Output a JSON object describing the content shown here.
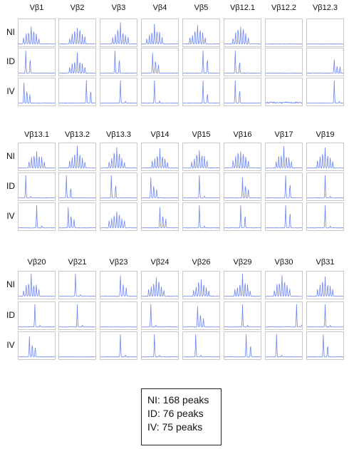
{
  "colors": {
    "trace": "#6f86f2",
    "frame": "#c9c9c9"
  },
  "row_labels": [
    "NI",
    "ID",
    "IV"
  ],
  "blocks": [
    {
      "labels": [
        "Vβ1",
        "Vβ2",
        "Vβ3",
        "Vβ4",
        "Vβ5",
        "Vβ12.1",
        "Vβ12.2",
        "Vβ12.3"
      ],
      "traces": [
        [
          "multi:0.35",
          "multi:0.5",
          "multi:0.55",
          "multi:0.35",
          "multi:0.4",
          "multi:0.45",
          "flat",
          "flat"
        ],
        [
          "pair:0.2",
          "multi:0.5",
          "pair:0.4",
          "cluster:0.3",
          "pair:0.55",
          "pair:0.3",
          "flat",
          "tail:0.75"
        ],
        [
          "cluster:0.15",
          "pair:0.75",
          "single:0.55",
          "single:0.35",
          "pair:0.55",
          "pair:0.3",
          "noise",
          "single:0.75"
        ]
      ]
    },
    {
      "labels": [
        "Vβ13.1",
        "Vβ13.2",
        "Vβ13.3",
        "Vβ14",
        "Vβ15",
        "Vβ16",
        "Vβ17",
        "Vβ19"
      ],
      "traces": [
        [
          "multi:0.5",
          "multi:0.5",
          "multi:0.45",
          "multi:0.5",
          "multi:0.45",
          "multi:0.45",
          "multi:0.5",
          "multi:0.5"
        ],
        [
          "single:0.2",
          "pair:0.2",
          "pair:0.3",
          "cluster:0.25",
          "single:0.45",
          "cluster:0.5",
          "pair:0.55",
          "single:0.5"
        ],
        [
          "single:0.5",
          "cluster:0.25",
          "multi:0.45",
          "cluster:0.5",
          "single:0.45",
          "pair:0.45",
          "pair:0.55",
          "single:0.5"
        ]
      ]
    },
    {
      "labels": [
        "Vβ20",
        "Vβ21",
        "Vβ23",
        "Vβ24",
        "Vβ26",
        "Vβ29",
        "Vβ30",
        "Vβ31"
      ],
      "traces": [
        [
          "multi:0.35",
          "single:0.45",
          "cluster:0.55",
          "multi:0.4",
          "multi:0.5",
          "multi:0.5",
          "multi:0.45",
          "multi:0.5"
        ],
        [
          "single:0.45",
          "single:0.5",
          "flat",
          "single:0.25",
          "cluster:0.4",
          "single:0.5",
          "single:0.85",
          "single:0.5"
        ],
        [
          "cluster:0.3",
          "flat",
          "single:0.55",
          "single:0.35",
          "single:0.35",
          "pair:0.6",
          "single:0.3",
          "pair:0.45"
        ]
      ]
    }
  ],
  "legend": {
    "ni": "NI: 168 peaks",
    "id": "ID: 76 peaks",
    "iv": "IV: 75 peaks"
  }
}
